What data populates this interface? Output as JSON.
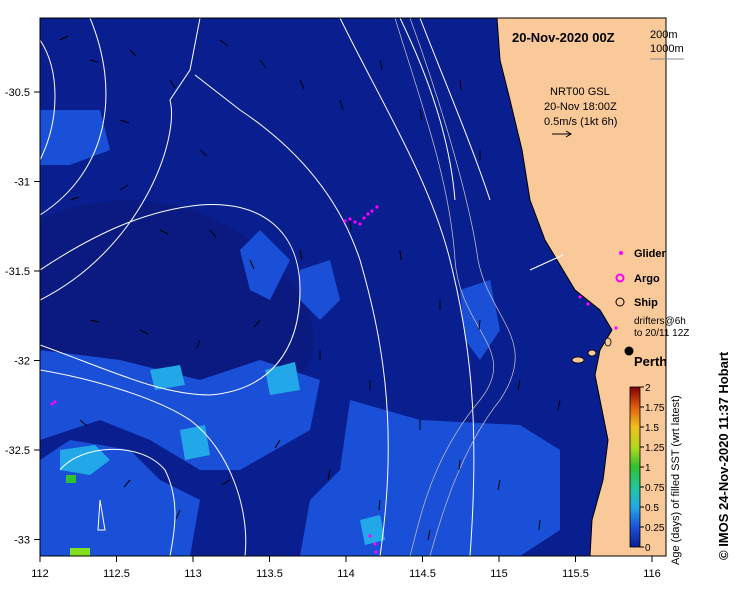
{
  "title": "20-Nov-2020 00Z",
  "isobath_legend": [
    "200m",
    "1000m"
  ],
  "current_info": {
    "product": "NRT00 GSL",
    "time": "20-Nov 18:00Z",
    "scale": "0.5m/s (1kt 6h)"
  },
  "legend": {
    "glider": "Glider",
    "argo": "Argo",
    "ship": "Ship",
    "drifters_line1": "drifters@6h",
    "drifters_line2": "to 20/11 12Z"
  },
  "city": "Perth",
  "colorbar": {
    "label": "Age (days) of filled SST (wrt latest)",
    "ticks": [
      "0",
      "0.25",
      "0.5",
      "0.75",
      "1",
      "1.25",
      "1.5",
      "1.75",
      "2"
    ]
  },
  "credit": "© IMOS 24-Nov-2020 11:37 Hobart",
  "axes": {
    "x_ticks": [
      "112",
      "112.5",
      "113",
      "113.5",
      "114",
      "114.5",
      "115",
      "115.5",
      "116"
    ],
    "y_ticks": [
      "-30.5",
      "-31",
      "-31.5",
      "-32",
      "-32.5",
      "-33"
    ]
  },
  "colors": {
    "ocean_deep": "#0a1f8f",
    "ocean_mid": "#1a4fd8",
    "ocean_light": "#22a8e8",
    "land": "#f9c99a",
    "glider": "#ff00ff"
  }
}
